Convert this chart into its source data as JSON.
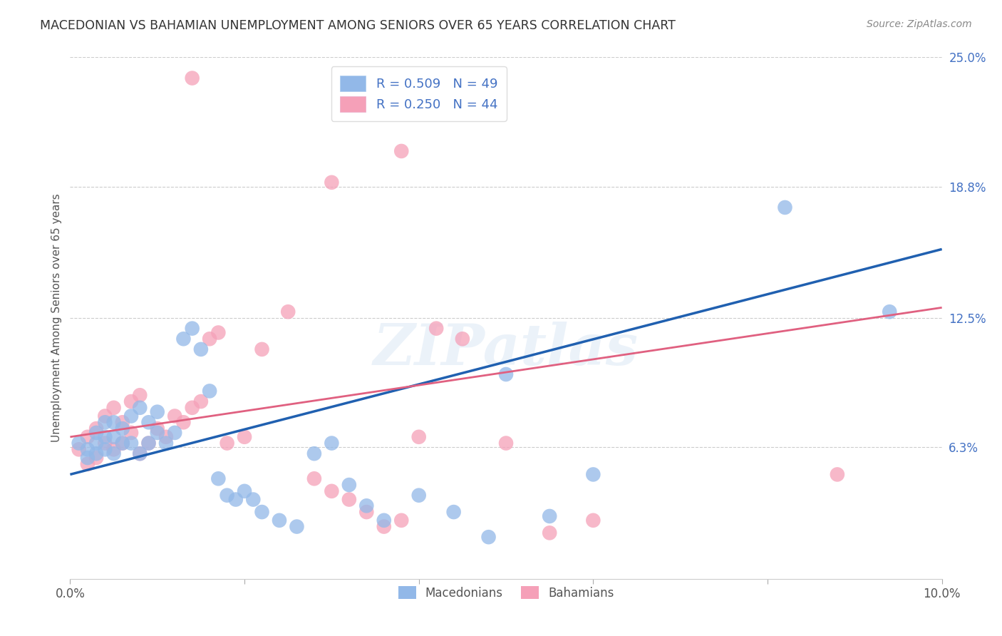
{
  "title": "MACEDONIAN VS BAHAMIAN UNEMPLOYMENT AMONG SENIORS OVER 65 YEARS CORRELATION CHART",
  "source": "Source: ZipAtlas.com",
  "ylabel": "Unemployment Among Seniors over 65 years",
  "xlim": [
    0.0,
    0.1
  ],
  "ylim": [
    0.0,
    0.25
  ],
  "ytick_labels_right": [
    "6.3%",
    "12.5%",
    "18.8%",
    "25.0%"
  ],
  "ytick_vals_right": [
    0.063,
    0.125,
    0.188,
    0.25
  ],
  "macedonian_color": "#92b8e8",
  "bahamian_color": "#f5a0b8",
  "macedonian_line_color": "#2060b0",
  "bahamian_line_color": "#e06080",
  "legend_label1": "Macedonians",
  "legend_label2": "Bahamians",
  "background_color": "#ffffff",
  "watermark": "ZIPatlas",
  "mac_line_y0": 0.05,
  "mac_line_y1": 0.158,
  "bah_line_y0": 0.068,
  "bah_line_y1": 0.13,
  "macedonian_x": [
    0.001,
    0.002,
    0.002,
    0.003,
    0.003,
    0.003,
    0.004,
    0.004,
    0.004,
    0.005,
    0.005,
    0.005,
    0.006,
    0.006,
    0.007,
    0.007,
    0.008,
    0.008,
    0.009,
    0.009,
    0.01,
    0.01,
    0.011,
    0.012,
    0.013,
    0.014,
    0.015,
    0.016,
    0.017,
    0.018,
    0.019,
    0.02,
    0.021,
    0.022,
    0.024,
    0.026,
    0.028,
    0.03,
    0.032,
    0.034,
    0.036,
    0.04,
    0.044,
    0.048,
    0.05,
    0.055,
    0.06,
    0.082,
    0.094
  ],
  "macedonian_y": [
    0.065,
    0.058,
    0.062,
    0.06,
    0.065,
    0.07,
    0.062,
    0.068,
    0.075,
    0.06,
    0.068,
    0.075,
    0.065,
    0.072,
    0.065,
    0.078,
    0.06,
    0.082,
    0.065,
    0.075,
    0.07,
    0.08,
    0.065,
    0.07,
    0.115,
    0.12,
    0.11,
    0.09,
    0.048,
    0.04,
    0.038,
    0.042,
    0.038,
    0.032,
    0.028,
    0.025,
    0.06,
    0.065,
    0.045,
    0.035,
    0.028,
    0.04,
    0.032,
    0.02,
    0.098,
    0.03,
    0.05,
    0.178,
    0.128
  ],
  "bahamian_x": [
    0.001,
    0.002,
    0.002,
    0.003,
    0.003,
    0.004,
    0.004,
    0.005,
    0.005,
    0.006,
    0.006,
    0.007,
    0.007,
    0.008,
    0.008,
    0.009,
    0.01,
    0.011,
    0.012,
    0.013,
    0.014,
    0.015,
    0.016,
    0.017,
    0.018,
    0.02,
    0.022,
    0.025,
    0.028,
    0.03,
    0.032,
    0.034,
    0.036,
    0.038,
    0.04,
    0.042,
    0.045,
    0.05,
    0.055,
    0.06,
    0.014,
    0.03,
    0.038,
    0.088
  ],
  "bahamian_y": [
    0.062,
    0.055,
    0.068,
    0.058,
    0.072,
    0.065,
    0.078,
    0.062,
    0.082,
    0.065,
    0.075,
    0.07,
    0.085,
    0.06,
    0.088,
    0.065,
    0.072,
    0.068,
    0.078,
    0.075,
    0.082,
    0.085,
    0.115,
    0.118,
    0.065,
    0.068,
    0.11,
    0.128,
    0.048,
    0.042,
    0.038,
    0.032,
    0.025,
    0.028,
    0.068,
    0.12,
    0.115,
    0.065,
    0.022,
    0.028,
    0.24,
    0.19,
    0.205,
    0.05
  ]
}
